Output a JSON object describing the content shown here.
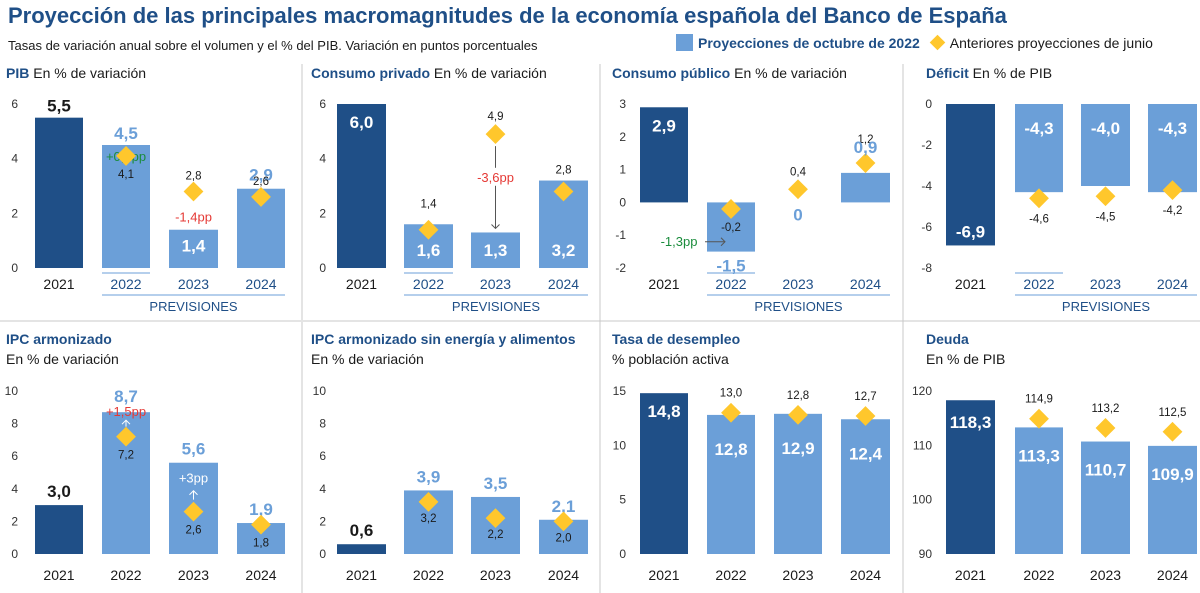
{
  "header": {
    "title": "Proyección de las principales macromagnitudes de la economía española del Banco de España",
    "subtitle": "Tasas de variación anual sobre el volumen y el % del PIB. Variación en puntos porcentuales"
  },
  "legend": {
    "current": "Proyecciones de octubre de 2022",
    "previous": "Anteriores proyecciones de junio"
  },
  "colors": {
    "dark": "#1f4f87",
    "light": "#6b9fd8",
    "diamond": "#ffc72c",
    "green": "#1a8c3c",
    "red": "#e53935"
  },
  "previsiones_label": "PREVISIONES",
  "chart_data": [
    {
      "id": "pib",
      "type": "bar",
      "title": "PIB",
      "subtitle": "En % de variación",
      "categories": [
        "2021",
        "2022",
        "2023",
        "2024"
      ],
      "values": [
        5.5,
        4.5,
        1.4,
        2.9
      ],
      "value_labels": [
        "5,5",
        "4,5",
        "1,4",
        "2,9"
      ],
      "june": [
        null,
        4.1,
        2.8,
        2.6
      ],
      "june_labels": [
        "",
        "4,1",
        "2,8",
        "2,6"
      ],
      "ylim": [
        0,
        6
      ],
      "yticks": [
        "0",
        "2",
        "4",
        "6"
      ],
      "annotations": [
        {
          "index": 1,
          "text": "+0,4pp",
          "color": "green"
        },
        {
          "index": 2,
          "text": "-1,4pp",
          "color": "red"
        }
      ]
    },
    {
      "id": "consumo_privado",
      "type": "bar",
      "title": "Consumo privado",
      "subtitle": "En % de variación",
      "categories": [
        "2021",
        "2022",
        "2023",
        "2024"
      ],
      "values": [
        6.0,
        1.6,
        1.3,
        3.2
      ],
      "value_labels": [
        "6,0",
        "1,6",
        "1,3",
        "3,2"
      ],
      "june": [
        null,
        1.4,
        4.9,
        2.8
      ],
      "june_labels": [
        "",
        "1,4",
        "4,9",
        "2,8"
      ],
      "ylim": [
        0,
        6
      ],
      "yticks": [
        "0",
        "2",
        "4",
        "6"
      ],
      "annotations": [
        {
          "index": 2,
          "text": "-3,6pp",
          "color": "red"
        }
      ]
    },
    {
      "id": "consumo_publico",
      "type": "bar",
      "title": "Consumo público",
      "subtitle": "En % de variación",
      "categories": [
        "2021",
        "2022",
        "2023",
        "2024"
      ],
      "values": [
        2.9,
        -1.5,
        0,
        0.9
      ],
      "value_labels": [
        "2,9",
        "-1,5",
        "0",
        "0,9"
      ],
      "june": [
        null,
        -0.2,
        0.4,
        1.2
      ],
      "june_labels": [
        "",
        "-0,2",
        "0,4",
        "1,2"
      ],
      "ylim": [
        -2,
        3
      ],
      "yticks": [
        "-2",
        "-1",
        "0",
        "1",
        "2",
        "3"
      ],
      "annotations": [
        {
          "index": 1,
          "text": "-1,3pp",
          "color": "green"
        }
      ]
    },
    {
      "id": "deficit",
      "type": "bar",
      "title": "Déficit",
      "subtitle": "En % de PIB",
      "categories": [
        "2021",
        "2022",
        "2023",
        "2024"
      ],
      "values": [
        -6.9,
        -4.3,
        -4.0,
        -4.3
      ],
      "value_labels": [
        "-6,9",
        "-4,3",
        "-4,0",
        "-4,3"
      ],
      "june": [
        null,
        -4.6,
        -4.5,
        -4.2
      ],
      "june_labels": [
        "",
        "-4,6",
        "-4,5",
        "-4,2"
      ],
      "ylim": [
        -8,
        0
      ],
      "yticks": [
        "-8",
        "-6",
        "-4",
        "-2",
        "0"
      ],
      "annotations": []
    },
    {
      "id": "ipc",
      "type": "bar",
      "title": "IPC armonizado",
      "subtitle": "En % de variación",
      "categories": [
        "2021",
        "2022",
        "2023",
        "2024"
      ],
      "values": [
        3.0,
        8.7,
        5.6,
        1.9
      ],
      "value_labels": [
        "3,0",
        "8,7",
        "5,6",
        "1,9"
      ],
      "june": [
        null,
        7.2,
        2.6,
        1.8
      ],
      "june_labels": [
        "",
        "7,2",
        "2,6",
        "1,8"
      ],
      "ylim": [
        0,
        10
      ],
      "yticks": [
        "0",
        "2",
        "4",
        "6",
        "8",
        "10"
      ],
      "annotations": [
        {
          "index": 1,
          "text": "+1,5pp",
          "color": "red"
        },
        {
          "index": 2,
          "text": "+3pp",
          "color": "white"
        }
      ]
    },
    {
      "id": "ipc_subyacente",
      "type": "bar",
      "title": "IPC armonizado sin energía y alimentos",
      "subtitle": "En % de variación",
      "categories": [
        "2021",
        "2022",
        "2023",
        "2024"
      ],
      "values": [
        0.6,
        3.9,
        3.5,
        2.1
      ],
      "value_labels": [
        "0,6",
        "3,9",
        "3,5",
        "2,1"
      ],
      "june": [
        null,
        3.2,
        2.2,
        2.0
      ],
      "june_labels": [
        "",
        "3,2",
        "2,2",
        "2,0"
      ],
      "ylim": [
        0,
        10
      ],
      "yticks": [
        "0",
        "2",
        "4",
        "6",
        "8",
        "10"
      ],
      "annotations": []
    },
    {
      "id": "desempleo",
      "type": "bar",
      "title": "Tasa de desempleo",
      "subtitle": "% población activa",
      "categories": [
        "2021",
        "2022",
        "2023",
        "2024"
      ],
      "values": [
        14.8,
        12.8,
        12.9,
        12.4
      ],
      "value_labels": [
        "14,8",
        "12,8",
        "12,9",
        "12,4"
      ],
      "june": [
        null,
        13.0,
        12.8,
        12.7
      ],
      "june_labels": [
        "",
        "13,0",
        "12,8",
        "12,7"
      ],
      "ylim": [
        0,
        15
      ],
      "yticks": [
        "0",
        "5",
        "10",
        "15"
      ],
      "annotations": []
    },
    {
      "id": "deuda",
      "type": "bar",
      "title": "Deuda",
      "subtitle": "En % de PIB",
      "categories": [
        "2021",
        "2022",
        "2023",
        "2024"
      ],
      "values": [
        118.3,
        113.3,
        110.7,
        109.9
      ],
      "value_labels": [
        "118,3",
        "113,3",
        "110,7",
        "109,9"
      ],
      "june": [
        null,
        114.9,
        113.2,
        112.5
      ],
      "june_labels": [
        "",
        "114,9",
        "113,2",
        "112,5"
      ],
      "ylim": [
        90,
        120
      ],
      "yticks": [
        "90",
        "100",
        "110",
        "120"
      ],
      "annotations": []
    }
  ]
}
